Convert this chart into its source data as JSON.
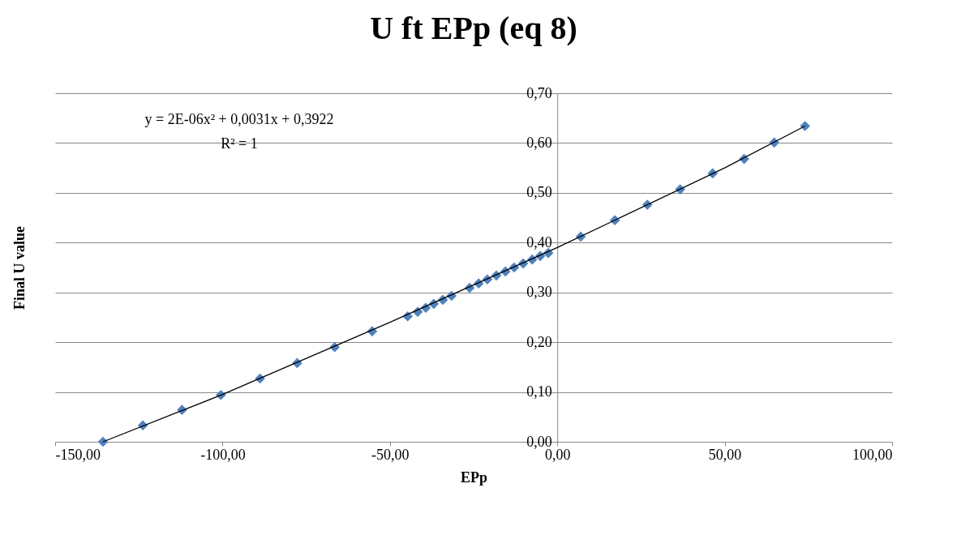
{
  "chart_data": {
    "type": "scatter",
    "title": "U ft EPp (eq 8)",
    "xlabel": "EPp",
    "ylabel": "Final U value",
    "xlim": [
      -150,
      100
    ],
    "xticks": [
      {
        "value": -150,
        "label": "-150,00"
      },
      {
        "value": -100,
        "label": "-100,00"
      },
      {
        "value": -50,
        "label": "-50,00"
      },
      {
        "value": 0,
        "label": "0,00"
      },
      {
        "value": 50,
        "label": "50,00"
      },
      {
        "value": 100,
        "label": "100,00"
      }
    ],
    "ylim": [
      0,
      0.7
    ],
    "yticks": [
      {
        "value": 0,
        "label": "0,00"
      },
      {
        "value": 0.1,
        "label": "0,10"
      },
      {
        "value": 0.2,
        "label": "0,20"
      },
      {
        "value": 0.3,
        "label": "0,30"
      },
      {
        "value": 0.4,
        "label": "0,40"
      },
      {
        "value": 0.5,
        "label": "0,50"
      },
      {
        "value": 0.6,
        "label": "0,60"
      },
      {
        "value": 0.7,
        "label": "0,70"
      }
    ],
    "grid": "y",
    "marker": "diamond",
    "series": [
      {
        "color": "#4f81bd",
        "x": [
          -135.7,
          -123.8,
          -112.1,
          -100.5,
          -88.8,
          -77.7,
          -66.5,
          -55.3,
          -44.7,
          -41.7,
          -39.3,
          -36.9,
          -34.2,
          -31.6,
          -26.2,
          -23.5,
          -20.9,
          -18.2,
          -15.5,
          -12.9,
          -10.2,
          -7.5,
          -5.1,
          -2.7,
          7.0,
          17.2,
          26.9,
          36.7,
          46.4,
          55.8,
          64.8,
          74.0
        ],
        "values": [
          0.0,
          0.033,
          0.064,
          0.094,
          0.127,
          0.158,
          0.19,
          0.222,
          0.252,
          0.261,
          0.269,
          0.277,
          0.285,
          0.293,
          0.309,
          0.318,
          0.326,
          0.334,
          0.342,
          0.35,
          0.358,
          0.366,
          0.373,
          0.379,
          0.412,
          0.445,
          0.476,
          0.507,
          0.539,
          0.568,
          0.601,
          0.634
        ]
      },
      {
        "type": "line",
        "color": "#000000",
        "marker": "none",
        "x": [
          -135.7,
          -100,
          -50,
          0,
          50,
          74
        ],
        "values": [
          0.0,
          0.095,
          0.24,
          0.39,
          0.55,
          0.634
        ]
      }
    ],
    "annotations": [
      "y = 2E-06x² + 0,0031x + 0,3922",
      "R² = 1"
    ]
  }
}
